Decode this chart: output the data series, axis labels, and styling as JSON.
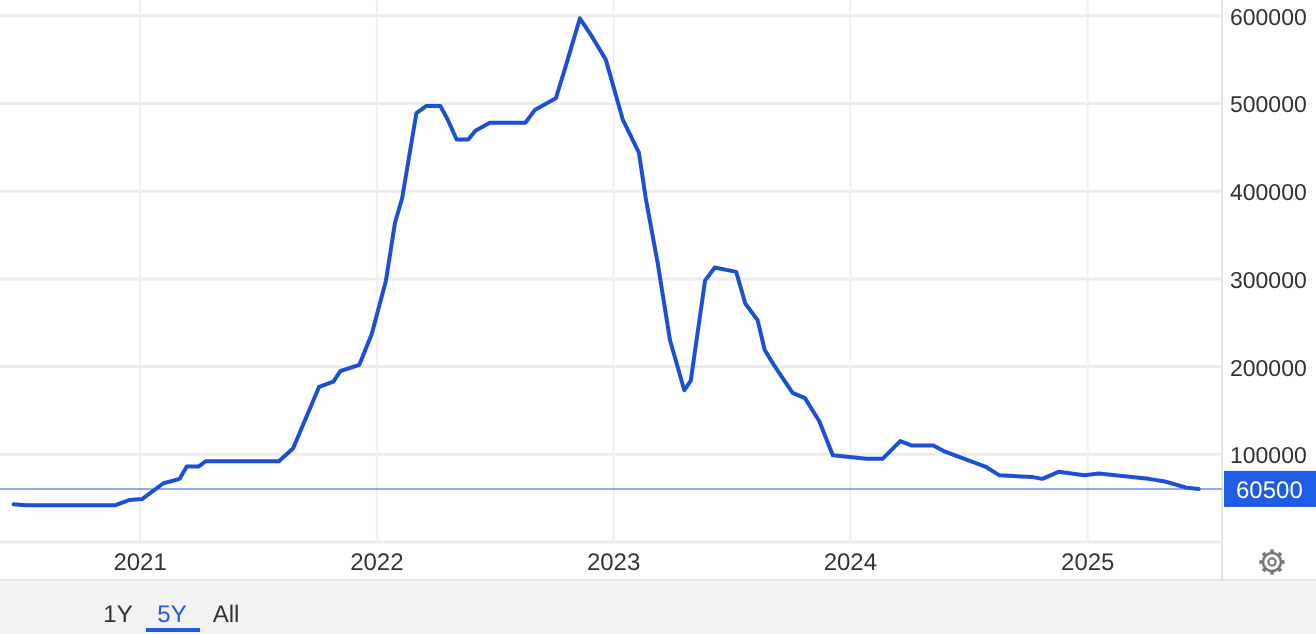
{
  "chart_data": {
    "type": "line",
    "x": [
      "2020-06-20",
      "2020-07-09",
      "2020-11-24",
      "2020-12-16",
      "2021-01-04",
      "2021-02-06",
      "2021-03-03",
      "2021-03-14",
      "2021-04-01",
      "2021-04-12",
      "2021-08-03",
      "2021-08-25",
      "2021-10-04",
      "2021-10-26",
      "2021-11-06",
      "2021-12-05",
      "2021-12-24",
      "2022-01-15",
      "2022-01-29",
      "2022-02-09",
      "2022-03-03",
      "2022-03-18",
      "2022-04-09",
      "2022-04-20",
      "2022-05-04",
      "2022-05-22",
      "2022-06-02",
      "2022-06-24",
      "2022-08-18",
      "2022-09-02",
      "2022-10-04",
      "2022-10-19",
      "2022-11-10",
      "2022-11-28",
      "2022-12-20",
      "2023-01-15",
      "2023-02-09",
      "2023-02-20",
      "2023-03-10",
      "2023-03-29",
      "2023-04-20",
      "2023-04-30",
      "2023-05-22",
      "2023-06-06",
      "2023-07-09",
      "2023-07-23",
      "2023-08-11",
      "2023-08-22",
      "2023-09-05",
      "2023-10-04",
      "2023-10-23",
      "2023-11-14",
      "2023-12-05",
      "2024-01-26",
      "2024-02-20",
      "2024-03-18",
      "2024-04-05",
      "2024-05-08",
      "2024-05-26",
      "2024-06-28",
      "2024-07-27",
      "2024-08-18",
      "2024-10-08",
      "2024-10-23",
      "2024-11-17",
      "2024-12-27",
      "2025-01-18",
      "2025-04-05",
      "2025-04-30",
      "2025-06-02",
      "2025-06-21"
    ],
    "series": [
      {
        "color": "#1a4fd6",
        "values": [
          43000,
          42000,
          42000,
          48000,
          49000,
          67000,
          72000,
          86000,
          86000,
          92000,
          92000,
          107000,
          177000,
          183000,
          195000,
          202000,
          237000,
          298000,
          364000,
          392000,
          489000,
          497000,
          497000,
          482000,
          459000,
          459000,
          469000,
          478000,
          478000,
          493000,
          506000,
          542000,
          597000,
          577000,
          550000,
          482000,
          444000,
          390000,
          318000,
          230000,
          173000,
          184000,
          298000,
          313000,
          308000,
          272000,
          253000,
          219000,
          202000,
          170000,
          164000,
          138000,
          99000,
          95000,
          95000,
          115000,
          110000,
          110000,
          103000,
          94000,
          86000,
          76000,
          74000,
          72000,
          80000,
          76000,
          78000,
          72000,
          69000,
          62000,
          60500
        ]
      }
    ],
    "xlim": [
      "2020-05-30",
      "2025-07-27"
    ],
    "xticks": [
      "2021",
      "2022",
      "2023",
      "2024",
      "2025"
    ],
    "ylim": [
      0,
      618000
    ],
    "yticks": [
      100000,
      200000,
      300000,
      400000,
      500000,
      600000
    ],
    "grid": true,
    "marker": "none",
    "line_style": "solid",
    "ref_lines": [
      {
        "axis": "y",
        "value": 60500,
        "label": "60500",
        "color": "#1f5ce6"
      }
    ],
    "annotations": [
      "1Y",
      "5Y",
      "All"
    ]
  }
}
